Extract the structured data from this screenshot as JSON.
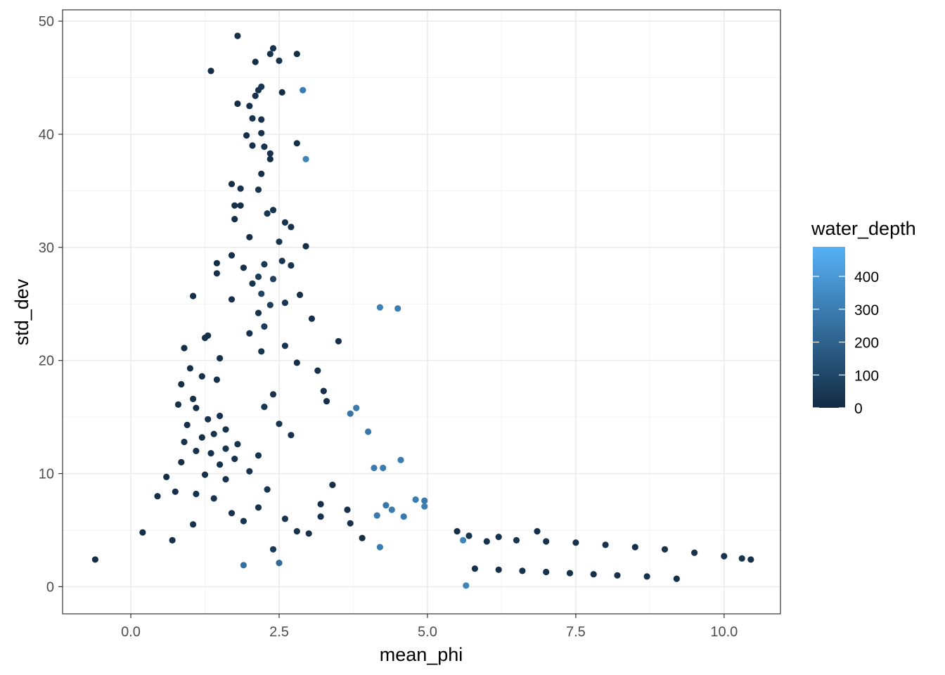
{
  "chart_data": {
    "type": "scatter",
    "title": "",
    "xlabel": "mean_phi",
    "ylabel": "std_dev",
    "xlim": [
      -1.15,
      10.95
    ],
    "ylim": [
      -2.4,
      51.0
    ],
    "x_ticks": [
      0.0,
      2.5,
      5.0,
      7.5,
      10.0
    ],
    "x_tick_labels": [
      "0.0",
      "2.5",
      "5.0",
      "7.5",
      "10.0"
    ],
    "y_ticks": [
      0,
      10,
      20,
      30,
      40,
      50
    ],
    "y_tick_labels": [
      "0",
      "10",
      "20",
      "30",
      "40",
      "50"
    ],
    "grid": true,
    "legend": {
      "title": "water_depth",
      "placement": "right",
      "type": "colorbar",
      "range": [
        0,
        490
      ],
      "ticks": [
        0,
        100,
        200,
        300,
        400
      ],
      "tick_labels": [
        "0",
        "100",
        "200",
        "300",
        "400"
      ],
      "color_low": "#132B43",
      "color_high": "#56B1F7"
    },
    "points_note_visible": "",
    "points": [
      [
        -0.6,
        2.4,
        10
      ],
      [
        1.8,
        48.7,
        20
      ],
      [
        2.4,
        47.6,
        30
      ],
      [
        2.35,
        47.1,
        25
      ],
      [
        2.8,
        47.1,
        15
      ],
      [
        2.1,
        46.4,
        20
      ],
      [
        2.5,
        46.5,
        30
      ],
      [
        1.35,
        45.6,
        15
      ],
      [
        2.9,
        43.9,
        300
      ],
      [
        2.2,
        44.2,
        40
      ],
      [
        2.15,
        43.9,
        30
      ],
      [
        2.55,
        43.7,
        20
      ],
      [
        2.1,
        43.4,
        25
      ],
      [
        1.8,
        42.7,
        15
      ],
      [
        2.0,
        42.5,
        20
      ],
      [
        2.05,
        41.4,
        30
      ],
      [
        2.2,
        41.3,
        25
      ],
      [
        1.95,
        39.9,
        20
      ],
      [
        2.2,
        40.1,
        25
      ],
      [
        2.05,
        39.0,
        15
      ],
      [
        2.8,
        39.2,
        20
      ],
      [
        2.25,
        38.9,
        30
      ],
      [
        2.35,
        38.3,
        25
      ],
      [
        2.35,
        37.8,
        20
      ],
      [
        2.95,
        37.8,
        320
      ],
      [
        2.2,
        36.5,
        15
      ],
      [
        1.7,
        35.6,
        20
      ],
      [
        1.85,
        35.2,
        25
      ],
      [
        2.15,
        35.1,
        30
      ],
      [
        1.75,
        33.7,
        20
      ],
      [
        1.85,
        33.7,
        15
      ],
      [
        2.4,
        33.3,
        25
      ],
      [
        2.3,
        33.0,
        40
      ],
      [
        2.6,
        32.2,
        30
      ],
      [
        1.75,
        32.5,
        20
      ],
      [
        2.7,
        31.8,
        25
      ],
      [
        2.0,
        30.9,
        20
      ],
      [
        2.95,
        30.1,
        15
      ],
      [
        2.5,
        30.5,
        35
      ],
      [
        1.7,
        29.3,
        20
      ],
      [
        2.55,
        28.8,
        40
      ],
      [
        1.45,
        28.6,
        15
      ],
      [
        2.25,
        28.5,
        50
      ],
      [
        1.9,
        28.2,
        25
      ],
      [
        2.7,
        28.4,
        30
      ],
      [
        1.45,
        27.7,
        20
      ],
      [
        2.15,
        27.4,
        60
      ],
      [
        2.4,
        27.2,
        80
      ],
      [
        2.05,
        26.8,
        35
      ],
      [
        1.05,
        25.7,
        15
      ],
      [
        2.2,
        25.9,
        90
      ],
      [
        2.85,
        25.8,
        20
      ],
      [
        2.6,
        25.1,
        40
      ],
      [
        1.7,
        25.4,
        25
      ],
      [
        2.35,
        24.9,
        70
      ],
      [
        2.15,
        24.2,
        30
      ],
      [
        4.2,
        24.7,
        310
      ],
      [
        4.5,
        24.6,
        300
      ],
      [
        3.05,
        23.7,
        15
      ],
      [
        2.25,
        23.0,
        60
      ],
      [
        2.0,
        22.4,
        25
      ],
      [
        1.3,
        22.2,
        20
      ],
      [
        1.25,
        22.0,
        15
      ],
      [
        3.5,
        21.7,
        20
      ],
      [
        2.6,
        21.3,
        40
      ],
      [
        0.9,
        21.1,
        15
      ],
      [
        2.2,
        20.8,
        35
      ],
      [
        1.5,
        20.2,
        25
      ],
      [
        2.8,
        19.8,
        20
      ],
      [
        3.15,
        19.1,
        25
      ],
      [
        1.0,
        19.3,
        15
      ],
      [
        1.2,
        18.6,
        20
      ],
      [
        1.45,
        18.3,
        25
      ],
      [
        0.85,
        17.9,
        15
      ],
      [
        3.25,
        17.3,
        20
      ],
      [
        2.4,
        17.0,
        30
      ],
      [
        1.05,
        16.6,
        25
      ],
      [
        3.3,
        16.4,
        15
      ],
      [
        0.8,
        16.1,
        20
      ],
      [
        1.1,
        15.8,
        20
      ],
      [
        3.8,
        15.8,
        290
      ],
      [
        3.7,
        15.3,
        270
      ],
      [
        2.25,
        15.9,
        40
      ],
      [
        1.5,
        15.1,
        25
      ],
      [
        1.3,
        14.8,
        30
      ],
      [
        2.5,
        14.4,
        35
      ],
      [
        0.95,
        14.3,
        20
      ],
      [
        1.6,
        13.9,
        25
      ],
      [
        4.0,
        13.7,
        280
      ],
      [
        1.4,
        13.5,
        30
      ],
      [
        2.7,
        13.4,
        25
      ],
      [
        1.2,
        13.2,
        20
      ],
      [
        0.9,
        12.8,
        25
      ],
      [
        1.8,
        12.6,
        35
      ],
      [
        1.6,
        12.2,
        40
      ],
      [
        1.1,
        12.0,
        25
      ],
      [
        1.35,
        11.8,
        30
      ],
      [
        2.15,
        11.6,
        25
      ],
      [
        1.75,
        11.3,
        30
      ],
      [
        4.55,
        11.2,
        300
      ],
      [
        0.85,
        11.0,
        20
      ],
      [
        1.5,
        10.8,
        25
      ],
      [
        4.1,
        10.5,
        290
      ],
      [
        4.25,
        10.5,
        300
      ],
      [
        2.0,
        10.2,
        30
      ],
      [
        1.25,
        9.9,
        25
      ],
      [
        0.6,
        9.7,
        15
      ],
      [
        1.6,
        9.5,
        30
      ],
      [
        3.4,
        9.0,
        20
      ],
      [
        2.3,
        8.6,
        35
      ],
      [
        0.75,
        8.4,
        20
      ],
      [
        1.1,
        8.2,
        25
      ],
      [
        0.45,
        8.0,
        15
      ],
      [
        1.4,
        7.8,
        30
      ],
      [
        4.8,
        7.7,
        300
      ],
      [
        4.95,
        7.6,
        290
      ],
      [
        4.95,
        7.1,
        310
      ],
      [
        4.3,
        7.2,
        280
      ],
      [
        3.2,
        7.3,
        20
      ],
      [
        2.15,
        7.0,
        25
      ],
      [
        4.4,
        6.8,
        300
      ],
      [
        3.65,
        6.8,
        20
      ],
      [
        1.7,
        6.5,
        30
      ],
      [
        4.15,
        6.3,
        290
      ],
      [
        3.2,
        6.2,
        25
      ],
      [
        4.6,
        6.2,
        280
      ],
      [
        2.6,
        6.0,
        30
      ],
      [
        1.9,
        5.8,
        35
      ],
      [
        3.7,
        5.6,
        20
      ],
      [
        1.05,
        5.5,
        25
      ],
      [
        0.2,
        4.8,
        15
      ],
      [
        2.8,
        4.9,
        30
      ],
      [
        5.5,
        4.9,
        20
      ],
      [
        6.85,
        4.9,
        20
      ],
      [
        3.0,
        4.7,
        25
      ],
      [
        5.7,
        4.5,
        30
      ],
      [
        6.2,
        4.4,
        25
      ],
      [
        5.6,
        4.1,
        330
      ],
      [
        3.9,
        4.3,
        20
      ],
      [
        4.2,
        3.5,
        300
      ],
      [
        0.7,
        4.1,
        20
      ],
      [
        2.4,
        3.3,
        60
      ],
      [
        1.9,
        1.9,
        250
      ],
      [
        2.5,
        2.1,
        230
      ],
      [
        5.65,
        0.1,
        320
      ],
      [
        9.2,
        0.7,
        20
      ],
      [
        10.3,
        2.5,
        30
      ],
      [
        10.45,
        2.4,
        25
      ],
      [
        10.0,
        2.7,
        30
      ],
      [
        9.5,
        3.0,
        25
      ],
      [
        9.0,
        3.3,
        30
      ],
      [
        8.5,
        3.5,
        20
      ],
      [
        8.0,
        3.7,
        25
      ],
      [
        7.5,
        3.9,
        30
      ],
      [
        7.0,
        4.0,
        25
      ],
      [
        6.5,
        4.1,
        30
      ],
      [
        6.0,
        4.0,
        25
      ],
      [
        8.7,
        0.9,
        25
      ],
      [
        8.2,
        1.0,
        30
      ],
      [
        7.8,
        1.1,
        20
      ],
      [
        7.4,
        1.2,
        25
      ],
      [
        7.0,
        1.3,
        30
      ],
      [
        6.6,
        1.4,
        25
      ],
      [
        6.2,
        1.5,
        20
      ],
      [
        5.8,
        1.6,
        25
      ]
    ]
  }
}
